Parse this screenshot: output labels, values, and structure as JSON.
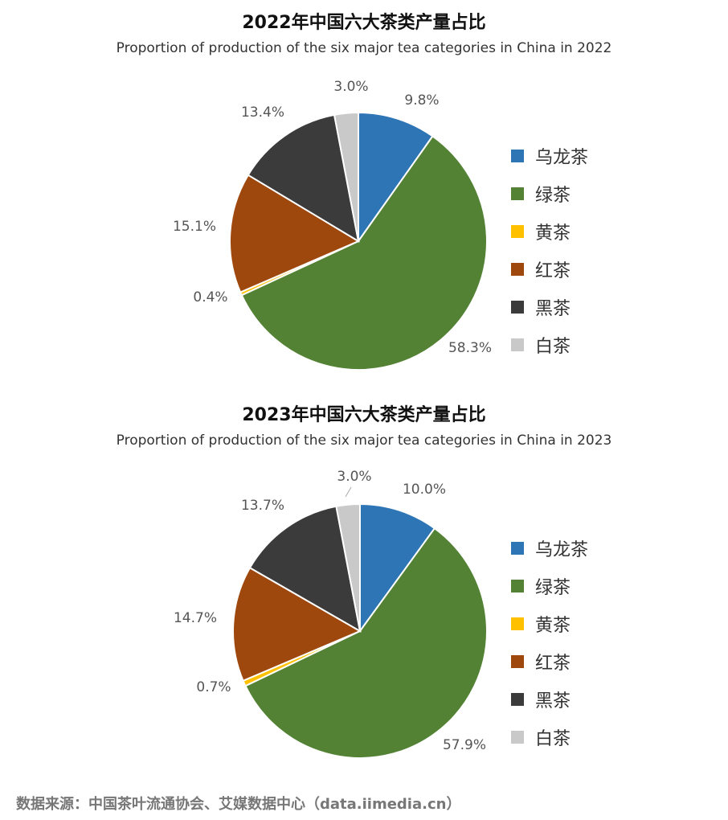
{
  "chart_data": [
    {
      "type": "pie",
      "title": "2022年中国六大茶类产量占比",
      "subtitle": "Proportion of production of the six major tea categories in China in 2022",
      "categories": [
        "乌龙茶",
        "绿茶",
        "黄茶",
        "红茶",
        "黑茶",
        "白茶"
      ],
      "values": [
        9.8,
        58.3,
        0.4,
        15.1,
        13.4,
        3.0
      ],
      "labels": [
        "9.8%",
        "58.3%",
        "0.4%",
        "15.1%",
        "13.4%",
        "3.0%"
      ],
      "colors": [
        "#2e75b6",
        "#548235",
        "#ffc000",
        "#9e480e",
        "#3b3b3b",
        "#c9c9c9"
      ],
      "legend": "right"
    },
    {
      "type": "pie",
      "title": "2023年中国六大茶类产量占比",
      "subtitle": "Proportion of production of the six major tea categories in China in 2023",
      "categories": [
        "乌龙茶",
        "绿茶",
        "黄茶",
        "红茶",
        "黑茶",
        "白茶"
      ],
      "values": [
        10.0,
        57.9,
        0.7,
        14.7,
        13.7,
        3.0
      ],
      "labels": [
        "10.0%",
        "57.9%",
        "0.7%",
        "14.7%",
        "13.7%",
        "3.0%"
      ],
      "colors": [
        "#2e75b6",
        "#548235",
        "#ffc000",
        "#9e480e",
        "#3b3b3b",
        "#c9c9c9"
      ],
      "legend": "right"
    }
  ],
  "source": "数据来源：中国茶叶流通协会、艾媒数据中心（data.iimedia.cn）"
}
